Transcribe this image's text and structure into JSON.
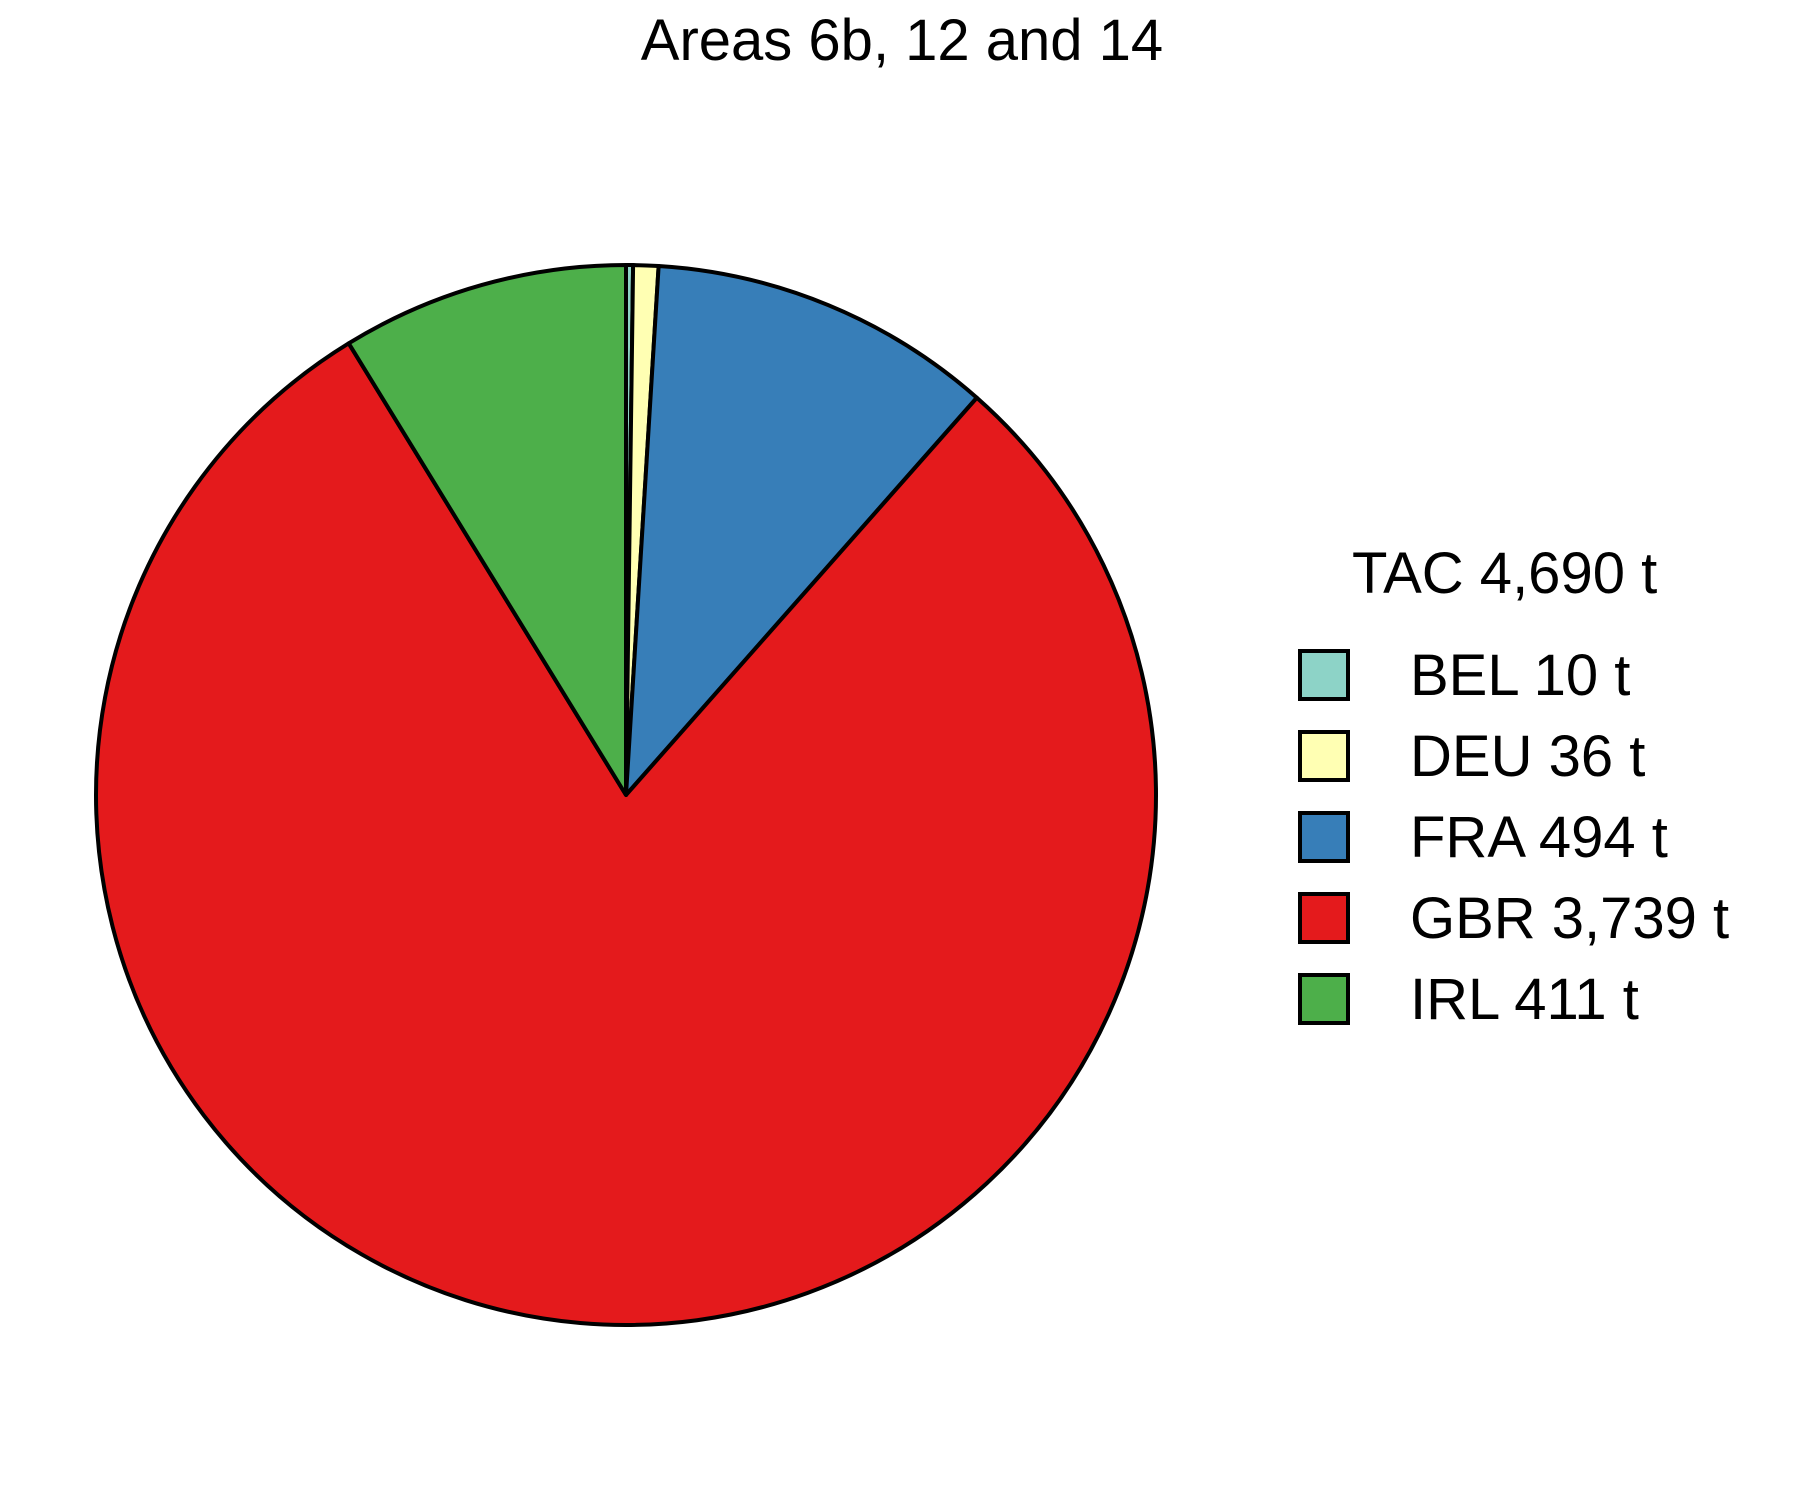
{
  "chart_data": {
    "type": "pie",
    "title": "Areas 6b, 12 and 14",
    "legend_title": "TAC 4,690 t",
    "legend_position": "right",
    "start_angle": "top",
    "direction": "clockwise",
    "slices": [
      {
        "category": "BEL",
        "label": "BEL 10 t",
        "value": 10,
        "color": "#8DD3C7"
      },
      {
        "category": "DEU",
        "label": "DEU 36 t",
        "value": 36,
        "color": "#FFFFB3"
      },
      {
        "category": "FRA",
        "label": "FRA 494 t",
        "value": 494,
        "color": "#377EB8"
      },
      {
        "category": "GBR",
        "label": "GBR 3,739 t",
        "value": 3739,
        "color": "#E41A1C"
      },
      {
        "category": "IRL",
        "label": "IRL 411 t",
        "value": 411,
        "color": "#4DAF4A"
      }
    ]
  }
}
